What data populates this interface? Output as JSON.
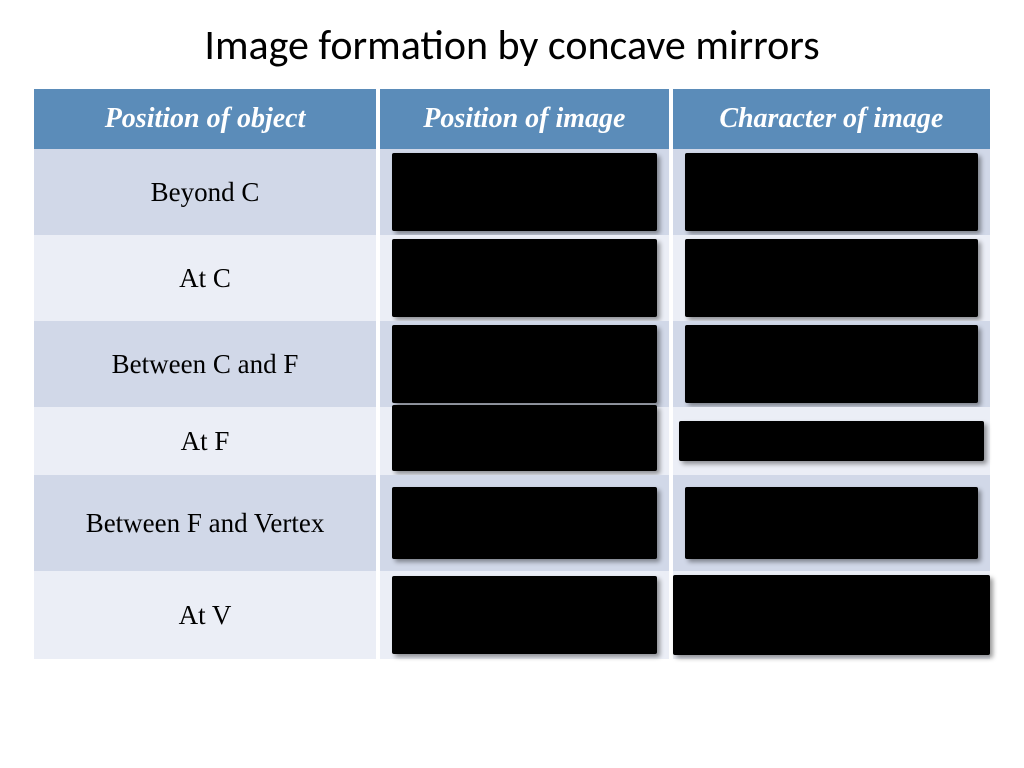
{
  "title": "Image formation by concave mirrors",
  "table": {
    "header_bg": "#5b8cb9",
    "row_alt1_bg": "#d1d8e8",
    "row_alt2_bg": "#ebeef6",
    "columns": [
      "Position of object",
      "Position of image",
      "Character of image"
    ],
    "rows": [
      {
        "label": "Beyond C"
      },
      {
        "label": "At  C"
      },
      {
        "label": "Between C and F"
      },
      {
        "label": "At  F"
      },
      {
        "label": "Between F and Vertex"
      },
      {
        "label": "At  V"
      }
    ]
  }
}
